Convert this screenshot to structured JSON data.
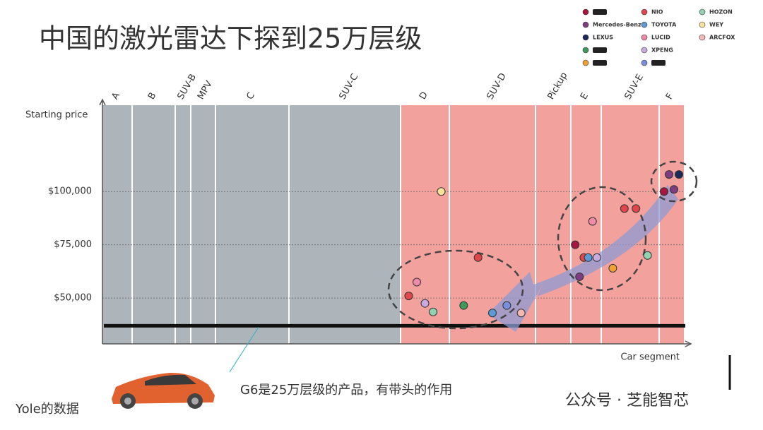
{
  "title": "中国的激光雷达下探到25万层级",
  "caption": "G6是25万层级的产品，有带头的作用",
  "source": "Yole的数据",
  "watermark": "公众号 · 芝能智芯",
  "chart_data": {
    "type": "scatter",
    "y_label": "Starting price",
    "x_label": "Car segment",
    "categories": [
      "A",
      "B",
      "SUV-B",
      "MPV",
      "C",
      "SUV-C",
      "D",
      "SUV-D",
      "Pickup",
      "E",
      "SUV-E",
      "F"
    ],
    "category_colors": [
      "#adb4ba",
      "#adb4ba",
      "#adb4ba",
      "#adb4ba",
      "#adb4ba",
      "#adb4ba",
      "#f3a19d",
      "#f3a19d",
      "#f3a19d",
      "#f3a19d",
      "#f3a19d",
      "#f3a19d"
    ],
    "ylim": [
      28500,
      140500
    ],
    "yticks": [
      {
        "value": 50000,
        "label": "$50,000"
      },
      {
        "value": 75000,
        "label": "$75,000"
      },
      {
        "value": 100000,
        "label": "$100,000"
      }
    ],
    "grid": true,
    "reference_line": 37000,
    "series": [
      {
        "name": null,
        "color": "#a6173f",
        "x": [
          "E",
          "F"
        ],
        "values": [
          75000,
          100000
        ]
      },
      {
        "name": "Mercedes-Benz",
        "color": "#7e3d80",
        "x": [
          "E",
          "F",
          "F"
        ],
        "values": [
          60000,
          108000,
          101000
        ]
      },
      {
        "name": "LEXUS",
        "color": "#1b2a58",
        "x": [
          "F"
        ],
        "values": [
          108000
        ]
      },
      {
        "name": null,
        "color": "#3d9a5b",
        "x": [
          "SUV-D"
        ],
        "values": [
          46500
        ]
      },
      {
        "name": null,
        "color": "#f1a134",
        "x": [
          "SUV-E"
        ],
        "values": [
          64000
        ]
      },
      {
        "name": "NIO",
        "color": "#e0464a",
        "x": [
          "D",
          "SUV-D",
          "E",
          "SUV-E",
          "SUV-E"
        ],
        "values": [
          51000,
          69000,
          69000,
          92000,
          92000
        ]
      },
      {
        "name": "TOYOTA",
        "color": "#5b9bd5",
        "x": [
          "SUV-D",
          "E"
        ],
        "values": [
          43000,
          69000
        ]
      },
      {
        "name": "LUCID",
        "color": "#f08aa8",
        "x": [
          "E",
          "D"
        ],
        "values": [
          86000,
          57500
        ]
      },
      {
        "name": "XPENG",
        "color": "#c9a9df",
        "x": [
          "D",
          "E"
        ],
        "values": [
          47500,
          69000
        ]
      },
      {
        "name": null,
        "color": "#7a8fd9",
        "x": [
          "SUV-D"
        ],
        "values": [
          46500
        ]
      },
      {
        "name": "HOZON",
        "color": "#8fd3b3",
        "x": [
          "D",
          "SUV-E"
        ],
        "values": [
          43500,
          70000
        ]
      },
      {
        "name": "WEY",
        "color": "#fbe29a",
        "x": [
          "D"
        ],
        "values": [
          100000
        ]
      },
      {
        "name": "ARCFOX",
        "color": "#f7b8b4",
        "x": [
          "SUV-D"
        ],
        "values": [
          43000
        ]
      }
    ]
  }
}
